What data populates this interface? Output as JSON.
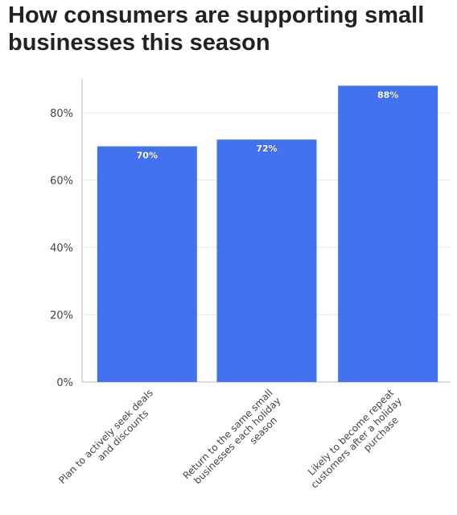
{
  "title": "How consumers are supporting small businesses this season",
  "colors": {
    "bar": "#4272ee",
    "grid": "#e8e8e8",
    "axis": "#bbbbbb"
  },
  "chart_data": {
    "type": "bar",
    "title": "How consumers are supporting small businesses this season",
    "categories": [
      "Plan to actively seek deals and discounts",
      "Return to the same small businesses each holiday season",
      "Likely to become repeat customers after a holiday purchase"
    ],
    "category_label_lines": [
      [
        "Plan to actively seek deals",
        "and discounts"
      ],
      [
        "Return to the same small",
        "businesses each holiday",
        "season"
      ],
      [
        "Likely to become repeat",
        "customers after a holiday",
        "purchase"
      ]
    ],
    "values": [
      70,
      72,
      88
    ],
    "data_labels": [
      "70%",
      "72%",
      "88%"
    ],
    "ylim": [
      0,
      90
    ],
    "yticks": [
      0,
      20,
      40,
      60,
      80
    ],
    "ytick_labels": [
      "0%",
      "20%",
      "40%",
      "60%",
      "80%"
    ],
    "xlabel": "",
    "ylabel": "",
    "grid": true
  }
}
